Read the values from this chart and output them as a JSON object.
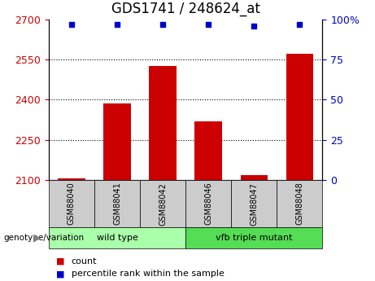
{
  "title": "GDS1741 / 248624_at",
  "samples": [
    "GSM88040",
    "GSM88041",
    "GSM88042",
    "GSM88046",
    "GSM88047",
    "GSM88048"
  ],
  "counts": [
    2107,
    2385,
    2528,
    2320,
    2118,
    2572
  ],
  "percentile_ranks": [
    97,
    97,
    97,
    97,
    96,
    97
  ],
  "ylim_left": [
    2100,
    2700
  ],
  "ylim_right": [
    0,
    100
  ],
  "yticks_left": [
    2100,
    2250,
    2400,
    2550,
    2700
  ],
  "yticks_right": [
    0,
    25,
    50,
    75,
    100
  ],
  "bar_color": "#cc0000",
  "dot_color": "#0000cc",
  "groups": [
    {
      "label": "wild type",
      "n": 3,
      "color": "#aaffaa"
    },
    {
      "label": "vfb triple mutant",
      "n": 3,
      "color": "#55dd55"
    }
  ],
  "genotype_label": "genotype/variation",
  "legend_count_label": "count",
  "legend_percentile_label": "percentile rank within the sample",
  "grid_color": "black",
  "tick_color_left": "#cc0000",
  "tick_color_right": "#0000cc",
  "title_fontsize": 12,
  "tick_label_fontsize": 9,
  "bar_width": 0.6,
  "sample_box_color": "#cccccc",
  "bg_color": "white"
}
